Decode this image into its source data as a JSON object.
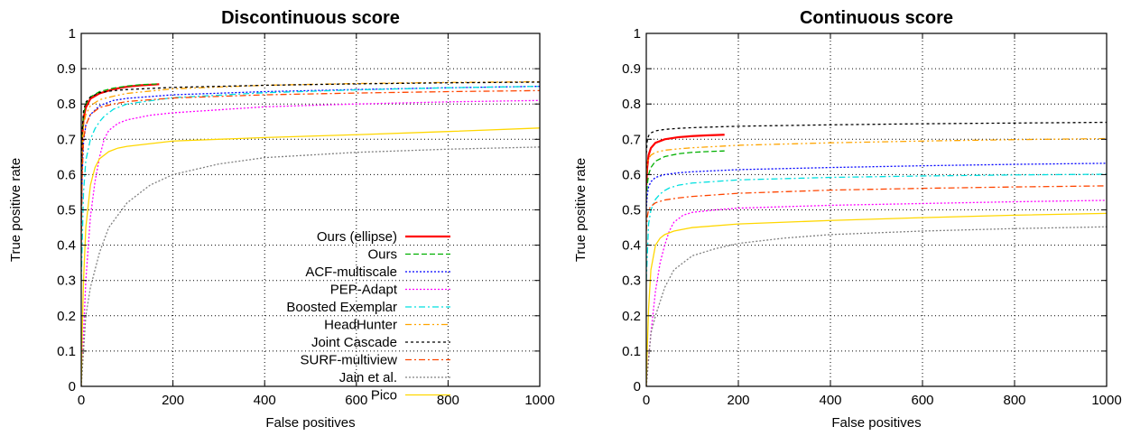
{
  "chart_data": [
    {
      "type": "line",
      "title": "Discontinuous score",
      "xlabel": "False positives",
      "ylabel": "True positive rate",
      "xlim": [
        0,
        1000
      ],
      "ylim": [
        0,
        1
      ],
      "xticks": [
        "0",
        "200",
        "400",
        "600",
        "800",
        "1000"
      ],
      "yticks": [
        "0",
        "0.1",
        "0.2",
        "0.3",
        "0.4",
        "0.5",
        "0.6",
        "0.7",
        "0.8",
        "0.9",
        "1"
      ],
      "grid": true,
      "legend": "bottom-right",
      "series": [
        {
          "name": "Ours (ellipse)",
          "color": "#ff0000",
          "dash": "solid",
          "x": [
            0,
            2,
            5,
            10,
            20,
            40,
            70,
            100,
            130,
            170
          ],
          "y": [
            0.52,
            0.7,
            0.76,
            0.79,
            0.815,
            0.83,
            0.842,
            0.849,
            0.853,
            0.856
          ]
        },
        {
          "name": "Ours",
          "color": "#00b000",
          "dash": "dashed",
          "x": [
            0,
            2,
            5,
            10,
            20,
            40,
            70,
            100,
            130,
            170
          ],
          "y": [
            0.52,
            0.7,
            0.77,
            0.8,
            0.82,
            0.835,
            0.845,
            0.851,
            0.855,
            0.857
          ]
        },
        {
          "name": "ACF-multiscale",
          "color": "#0000ff",
          "dash": "dotted",
          "x": [
            0,
            2,
            5,
            10,
            20,
            40,
            70,
            100,
            200,
            400,
            600,
            800,
            1000
          ],
          "y": [
            0.45,
            0.6,
            0.69,
            0.74,
            0.77,
            0.795,
            0.81,
            0.816,
            0.826,
            0.835,
            0.841,
            0.846,
            0.85
          ]
        },
        {
          "name": "PEP-Adapt",
          "color": "#ff00ff",
          "dash": "dotted",
          "x": [
            0,
            5,
            10,
            20,
            30,
            40,
            50,
            60,
            80,
            100,
            150,
            200,
            400,
            600,
            800,
            1000
          ],
          "y": [
            0.0,
            0.15,
            0.3,
            0.48,
            0.58,
            0.65,
            0.7,
            0.725,
            0.745,
            0.755,
            0.768,
            0.775,
            0.792,
            0.8,
            0.806,
            0.81
          ]
        },
        {
          "name": "Boosted Exemplar",
          "color": "#00e0e0",
          "dash": "dashdot",
          "x": [
            0,
            5,
            10,
            20,
            30,
            40,
            50,
            70,
            100,
            200,
            400,
            600,
            800,
            1000
          ],
          "y": [
            0.3,
            0.55,
            0.64,
            0.7,
            0.73,
            0.75,
            0.765,
            0.785,
            0.8,
            0.818,
            0.832,
            0.84,
            0.846,
            0.85
          ]
        },
        {
          "name": "HeadHunter",
          "color": "#ffa500",
          "dash": "dashdotdot",
          "x": [
            0,
            2,
            5,
            10,
            20,
            40,
            70,
            100,
            200,
            400,
            600,
            800,
            1000
          ],
          "y": [
            0.5,
            0.68,
            0.74,
            0.77,
            0.795,
            0.812,
            0.822,
            0.83,
            0.843,
            0.853,
            0.858,
            0.861,
            0.863
          ]
        },
        {
          "name": "Joint Cascade",
          "color": "#000000",
          "dash": "shortdash",
          "x": [
            0,
            2,
            5,
            10,
            20,
            40,
            70,
            100,
            200,
            400,
            600,
            800,
            1000
          ],
          "y": [
            0.56,
            0.72,
            0.78,
            0.805,
            0.82,
            0.832,
            0.838,
            0.841,
            0.847,
            0.853,
            0.857,
            0.86,
            0.862
          ]
        },
        {
          "name": "SURF-multiview",
          "color": "#ff4500",
          "dash": "dashdot",
          "x": [
            0,
            2,
            5,
            10,
            20,
            40,
            70,
            100,
            200,
            400,
            600,
            800,
            1000
          ],
          "y": [
            0.4,
            0.6,
            0.7,
            0.74,
            0.77,
            0.79,
            0.8,
            0.807,
            0.817,
            0.826,
            0.831,
            0.835,
            0.838
          ]
        },
        {
          "name": "Jain et al.",
          "color": "#808080",
          "dash": "dotted",
          "x": [
            0,
            10,
            20,
            40,
            60,
            100,
            150,
            200,
            300,
            400,
            600,
            800,
            1000
          ],
          "y": [
            0.0,
            0.2,
            0.28,
            0.38,
            0.45,
            0.52,
            0.57,
            0.6,
            0.63,
            0.648,
            0.663,
            0.672,
            0.678
          ]
        },
        {
          "name": "Pico",
          "color": "#ffd700",
          "dash": "solid",
          "x": [
            0,
            2,
            5,
            10,
            20,
            30,
            40,
            60,
            80,
            100,
            200,
            400,
            600,
            800,
            1000
          ],
          "y": [
            0.0,
            0.15,
            0.3,
            0.45,
            0.57,
            0.62,
            0.645,
            0.665,
            0.675,
            0.68,
            0.695,
            0.705,
            0.713,
            0.722,
            0.732
          ]
        }
      ]
    },
    {
      "type": "line",
      "title": "Continuous score",
      "xlabel": "False positives",
      "ylabel": "True positive rate",
      "xlim": [
        0,
        1000
      ],
      "ylim": [
        0,
        1
      ],
      "xticks": [
        "0",
        "200",
        "400",
        "600",
        "800",
        "1000"
      ],
      "yticks": [
        "0",
        "0.1",
        "0.2",
        "0.3",
        "0.4",
        "0.5",
        "0.6",
        "0.7",
        "0.8",
        "0.9",
        "1"
      ],
      "grid": true,
      "legend": "bottom-right",
      "series": [
        {
          "name": "Ours (ellipse)",
          "color": "#ff0000",
          "dash": "solid",
          "x": [
            0,
            2,
            5,
            10,
            20,
            40,
            70,
            100,
            130,
            170
          ],
          "y": [
            0.57,
            0.62,
            0.655,
            0.675,
            0.69,
            0.7,
            0.706,
            0.709,
            0.711,
            0.713
          ]
        },
        {
          "name": "Ours",
          "color": "#00b000",
          "dash": "dashed",
          "x": [
            0,
            2,
            5,
            10,
            20,
            40,
            70,
            100,
            130,
            170
          ],
          "y": [
            0.53,
            0.57,
            0.6,
            0.62,
            0.638,
            0.651,
            0.659,
            0.663,
            0.665,
            0.667
          ]
        },
        {
          "name": "ACF-multiscale",
          "color": "#0000ff",
          "dash": "dotted",
          "x": [
            0,
            2,
            5,
            10,
            20,
            40,
            70,
            100,
            200,
            400,
            600,
            800,
            1000
          ],
          "y": [
            0.5,
            0.54,
            0.565,
            0.58,
            0.592,
            0.6,
            0.605,
            0.608,
            0.614,
            0.62,
            0.625,
            0.629,
            0.632
          ]
        },
        {
          "name": "PEP-Adapt",
          "color": "#ff00ff",
          "dash": "dotted",
          "x": [
            0,
            5,
            10,
            20,
            30,
            40,
            50,
            60,
            80,
            100,
            150,
            200,
            400,
            600,
            800,
            1000
          ],
          "y": [
            0.0,
            0.08,
            0.15,
            0.27,
            0.35,
            0.4,
            0.44,
            0.465,
            0.485,
            0.493,
            0.5,
            0.505,
            0.513,
            0.518,
            0.523,
            0.527
          ]
        },
        {
          "name": "Boosted Exemplar",
          "color": "#00e0e0",
          "dash": "dashdot",
          "x": [
            0,
            5,
            10,
            20,
            30,
            40,
            50,
            70,
            100,
            200,
            400,
            600,
            800,
            1000
          ],
          "y": [
            0.3,
            0.46,
            0.5,
            0.53,
            0.545,
            0.555,
            0.562,
            0.57,
            0.576,
            0.585,
            0.592,
            0.596,
            0.599,
            0.601
          ]
        },
        {
          "name": "HeadHunter",
          "color": "#ffa500",
          "dash": "dashdotdot",
          "x": [
            0,
            2,
            5,
            10,
            20,
            40,
            70,
            100,
            200,
            400,
            600,
            800,
            1000
          ],
          "y": [
            0.6,
            0.63,
            0.645,
            0.655,
            0.663,
            0.669,
            0.673,
            0.676,
            0.683,
            0.69,
            0.695,
            0.699,
            0.702
          ]
        },
        {
          "name": "Joint Cascade",
          "color": "#000000",
          "dash": "shortdash",
          "x": [
            0,
            2,
            5,
            10,
            20,
            40,
            70,
            100,
            200,
            400,
            600,
            800,
            1000
          ],
          "y": [
            0.66,
            0.695,
            0.71,
            0.718,
            0.724,
            0.728,
            0.731,
            0.733,
            0.737,
            0.741,
            0.744,
            0.746,
            0.748
          ]
        },
        {
          "name": "SURF-multiview",
          "color": "#ff4500",
          "dash": "dashdot",
          "x": [
            0,
            2,
            5,
            10,
            20,
            40,
            70,
            100,
            200,
            400,
            600,
            800,
            1000
          ],
          "y": [
            0.44,
            0.48,
            0.5,
            0.51,
            0.52,
            0.528,
            0.534,
            0.538,
            0.547,
            0.556,
            0.561,
            0.565,
            0.568
          ]
        },
        {
          "name": "Jain et al.",
          "color": "#808080",
          "dash": "dotted",
          "x": [
            0,
            10,
            20,
            40,
            60,
            100,
            150,
            200,
            300,
            400,
            600,
            800,
            1000
          ],
          "y": [
            0.0,
            0.15,
            0.2,
            0.28,
            0.33,
            0.37,
            0.39,
            0.405,
            0.42,
            0.43,
            0.44,
            0.447,
            0.452
          ]
        },
        {
          "name": "Pico",
          "color": "#ffd700",
          "dash": "solid",
          "x": [
            0,
            2,
            5,
            10,
            20,
            30,
            40,
            60,
            80,
            100,
            200,
            400,
            600,
            800,
            1000
          ],
          "y": [
            0.0,
            0.1,
            0.22,
            0.33,
            0.4,
            0.42,
            0.43,
            0.44,
            0.445,
            0.45,
            0.46,
            0.47,
            0.478,
            0.485,
            0.49
          ]
        }
      ]
    }
  ]
}
